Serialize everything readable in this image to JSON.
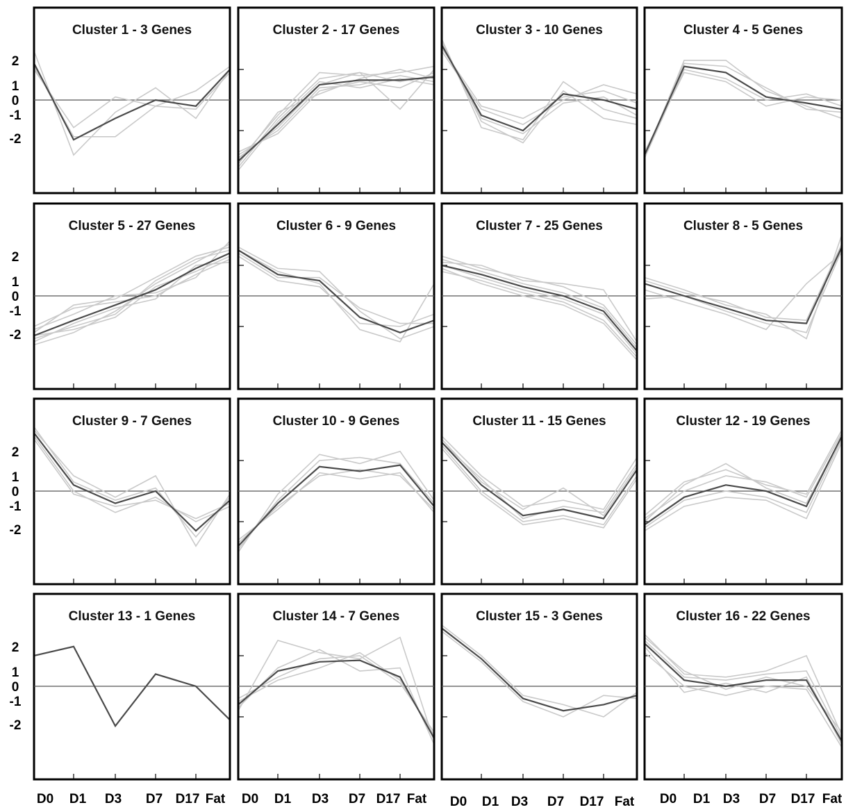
{
  "chart_data": {
    "type": "line",
    "layout": "4x4 grid of small multiples",
    "x_categories": [
      "D0",
      "D1",
      "D3",
      "D7",
      "D17",
      "Fat"
    ],
    "y_tick_labels": [
      "2",
      "1",
      "0",
      "-1",
      "-2"
    ],
    "ylim": [
      -3,
      3
    ],
    "grid": false,
    "zero_line": true,
    "colors": {
      "mean_line": "#4a4a4a",
      "gene_lines": "#c9c9c9",
      "zero_line": "#555555",
      "frame": "#000000"
    },
    "panels": [
      {
        "title": "Cluster 1 - 3 Genes",
        "mean": [
          1.2,
          -1.3,
          -0.6,
          0.0,
          -0.2,
          1.0
        ],
        "genes": [
          [
            1.6,
            -1.8,
            -0.4,
            0.4,
            -0.6,
            1.0
          ],
          [
            1.0,
            -0.9,
            0.1,
            -0.2,
            0.3,
            1.1
          ],
          [
            1.1,
            -1.2,
            -1.2,
            -0.2,
            -0.3,
            0.9
          ]
        ]
      },
      {
        "title": "Cluster 2 - 17 Genes",
        "mean": [
          -2.0,
          -0.8,
          0.5,
          0.65,
          0.65,
          0.75
        ],
        "genes": [
          [
            -2.2,
            -0.6,
            0.7,
            0.9,
            0.6,
            0.8
          ],
          [
            -1.8,
            -1.0,
            0.4,
            0.5,
            0.8,
            0.6
          ],
          [
            -2.0,
            -0.5,
            0.9,
            0.8,
            0.9,
            1.1
          ],
          [
            -1.7,
            -1.1,
            0.3,
            0.6,
            0.4,
            0.9
          ],
          [
            -2.3,
            -0.7,
            0.6,
            0.4,
            0.7,
            0.5
          ],
          [
            -1.9,
            -0.9,
            0.5,
            0.9,
            -0.3,
            1.0
          ],
          [
            -2.1,
            -0.4,
            0.2,
            0.7,
            1.0,
            0.7
          ]
        ]
      },
      {
        "title": "Cluster 3 - 10 Genes",
        "mean": [
          1.8,
          -0.5,
          -1.0,
          0.2,
          0.0,
          -0.3
        ],
        "genes": [
          [
            2.0,
            -0.9,
            -1.3,
            0.6,
            -0.3,
            -0.6
          ],
          [
            1.6,
            -0.3,
            -0.8,
            0.0,
            0.5,
            0.2
          ],
          [
            1.9,
            -0.7,
            -1.4,
            0.3,
            -0.6,
            -0.8
          ],
          [
            1.7,
            -0.2,
            -0.6,
            0.1,
            0.3,
            -0.1
          ],
          [
            1.8,
            -0.6,
            -1.1,
            -0.1,
            0.1,
            -0.5
          ]
        ]
      },
      {
        "title": "Cluster 4 - 5 Genes",
        "mean": [
          -1.8,
          1.1,
          0.9,
          0.1,
          -0.1,
          -0.3
        ],
        "genes": [
          [
            -1.9,
            1.3,
            1.3,
            0.3,
            -0.2,
            -0.6
          ],
          [
            -1.7,
            0.9,
            0.6,
            -0.2,
            0.1,
            0.0
          ],
          [
            -1.8,
            1.2,
            1.1,
            0.4,
            -0.3,
            -0.4
          ],
          [
            -1.9,
            1.0,
            0.7,
            0.0,
            0.2,
            -0.2
          ]
        ]
      },
      {
        "title": "Cluster 5 - 27 Genes",
        "mean": [
          -1.3,
          -0.8,
          -0.3,
          0.2,
          0.9,
          1.4
        ],
        "genes": [
          [
            -1.6,
            -1.2,
            -0.5,
            0.4,
            1.1,
            1.7
          ],
          [
            -1.0,
            -0.4,
            -0.2,
            0.0,
            0.7,
            1.2
          ],
          [
            -1.4,
            -1.0,
            -0.6,
            0.5,
            1.2,
            1.5
          ],
          [
            -1.1,
            -0.6,
            0.0,
            0.1,
            0.6,
            1.8
          ],
          [
            -1.5,
            -0.9,
            -0.4,
            -0.1,
            1.0,
            1.1
          ],
          [
            -1.2,
            -0.3,
            -0.1,
            0.6,
            1.3,
            1.6
          ],
          [
            -1.3,
            -1.1,
            -0.7,
            0.3,
            0.8,
            1.3
          ]
        ]
      },
      {
        "title": "Cluster 6 - 9 Genes",
        "mean": [
          1.5,
          0.7,
          0.5,
          -0.7,
          -1.2,
          -0.8
        ],
        "genes": [
          [
            1.6,
            0.9,
            0.8,
            -0.5,
            -1.4,
            -1.0
          ],
          [
            1.3,
            0.5,
            0.3,
            -0.9,
            -1.0,
            -0.6
          ],
          [
            1.5,
            0.8,
            0.4,
            -1.1,
            -1.5,
            0.4
          ],
          [
            1.4,
            0.6,
            0.6,
            -0.4,
            -0.9,
            -0.9
          ]
        ]
      },
      {
        "title": "Cluster 7 - 25 Genes",
        "mean": [
          1.0,
          0.7,
          0.3,
          0.0,
          -0.5,
          -1.8
        ],
        "genes": [
          [
            1.3,
            0.9,
            0.6,
            0.3,
            -0.3,
            -1.6
          ],
          [
            0.8,
            0.5,
            0.1,
            -0.2,
            -0.8,
            -2.0
          ],
          [
            1.1,
            1.0,
            0.5,
            0.4,
            0.2,
            -1.5
          ],
          [
            0.9,
            0.4,
            0.0,
            -0.3,
            -0.9,
            -2.1
          ],
          [
            1.2,
            0.8,
            0.4,
            0.1,
            -0.4,
            -1.7
          ],
          [
            1.0,
            0.6,
            0.2,
            -0.1,
            -0.6,
            -1.9
          ]
        ]
      },
      {
        "title": "Cluster 8 - 5 Genes",
        "mean": [
          0.4,
          0.0,
          -0.4,
          -0.8,
          -0.9,
          1.6
        ],
        "genes": [
          [
            0.6,
            0.2,
            -0.3,
            -0.6,
            -1.4,
            2.0
          ],
          [
            0.2,
            -0.2,
            -0.6,
            -1.1,
            0.4,
            1.4
          ],
          [
            0.5,
            0.1,
            -0.2,
            -0.7,
            -0.8,
            1.7
          ],
          [
            -0.1,
            0.0,
            -0.5,
            -0.9,
            -1.2,
            1.5
          ]
        ]
      },
      {
        "title": "Cluster 9 - 7 Genes",
        "mean": [
          1.9,
          0.2,
          -0.4,
          0.0,
          -1.3,
          -0.3
        ],
        "genes": [
          [
            2.0,
            0.5,
            -0.2,
            0.5,
            -1.8,
            -0.1
          ],
          [
            1.8,
            0.0,
            -0.7,
            -0.2,
            -1.0,
            -0.5
          ],
          [
            2.1,
            0.3,
            -0.3,
            0.1,
            -1.5,
            -0.2
          ],
          [
            1.7,
            -0.1,
            -0.5,
            -0.3,
            -0.9,
            -0.4
          ]
        ]
      },
      {
        "title": "Cluster 10 - 9 Genes",
        "mean": [
          -1.8,
          -0.4,
          0.8,
          0.65,
          0.85,
          -0.5
        ],
        "genes": [
          [
            -2.0,
            -0.1,
            1.2,
            0.9,
            1.3,
            -0.3
          ],
          [
            -1.6,
            -0.6,
            0.6,
            0.4,
            0.6,
            -0.7
          ],
          [
            -1.9,
            -0.3,
            1.0,
            1.1,
            0.9,
            -0.4
          ],
          [
            -1.7,
            -0.5,
            0.5,
            0.7,
            0.5,
            -0.6
          ]
        ]
      },
      {
        "title": "Cluster 11 - 15 Genes",
        "mean": [
          1.6,
          0.2,
          -0.8,
          -0.6,
          -0.9,
          0.7
        ],
        "genes": [
          [
            1.8,
            0.5,
            -0.5,
            -0.3,
            -0.6,
            1.1
          ],
          [
            1.4,
            -0.1,
            -1.1,
            -0.9,
            -1.2,
            0.4
          ],
          [
            1.7,
            0.3,
            -0.6,
            0.1,
            -0.8,
            0.8
          ],
          [
            1.5,
            0.0,
            -1.0,
            -0.8,
            -1.1,
            0.5
          ],
          [
            1.6,
            0.4,
            -0.9,
            -0.5,
            -0.7,
            0.9
          ]
        ]
      },
      {
        "title": "Cluster 12 - 19 Genes",
        "mean": [
          -1.1,
          -0.2,
          0.2,
          0.0,
          -0.5,
          1.8
        ],
        "genes": [
          [
            -0.8,
            0.3,
            0.7,
            0.2,
            -0.1,
            2.0
          ],
          [
            -1.3,
            -0.5,
            -0.2,
            -0.3,
            -0.9,
            1.6
          ],
          [
            -0.9,
            0.0,
            0.5,
            0.3,
            -0.2,
            1.9
          ],
          [
            -1.2,
            -0.3,
            0.0,
            -0.2,
            -0.7,
            1.7
          ],
          [
            -1.0,
            0.2,
            0.9,
            0.1,
            -0.4,
            1.8
          ]
        ]
      },
      {
        "title": "Cluster 13 - 1 Genes",
        "mean": [
          1.0,
          1.3,
          -1.3,
          0.4,
          0.0,
          -1.1
        ],
        "genes": []
      },
      {
        "title": "Cluster 14 - 7 Genes",
        "mean": [
          -0.6,
          0.5,
          0.8,
          0.85,
          0.3,
          -1.7
        ],
        "genes": [
          [
            -0.8,
            1.5,
            1.1,
            0.9,
            1.6,
            -1.8
          ],
          [
            -0.4,
            0.3,
            0.9,
            1.0,
            0.1,
            -1.5
          ],
          [
            -0.7,
            0.6,
            1.2,
            0.5,
            0.6,
            -1.9
          ],
          [
            -0.5,
            0.2,
            0.6,
            1.1,
            0.2,
            -1.6
          ]
        ]
      },
      {
        "title": "Cluster 15 - 3 Genes",
        "mean": [
          1.9,
          0.9,
          -0.4,
          -0.8,
          -0.6,
          -0.3
        ],
        "genes": [
          [
            2.0,
            1.0,
            -0.3,
            -0.6,
            -1.0,
            -0.2
          ],
          [
            1.8,
            0.8,
            -0.5,
            -1.0,
            -0.3,
            -0.4
          ]
        ]
      },
      {
        "title": "Cluster 16 - 22 Genes",
        "mean": [
          1.4,
          0.2,
          0.0,
          0.2,
          0.2,
          -1.8
        ],
        "genes": [
          [
            1.7,
            0.4,
            0.3,
            0.5,
            1.0,
            -1.6
          ],
          [
            1.1,
            0.0,
            -0.3,
            0.0,
            -0.1,
            -2.0
          ],
          [
            1.5,
            0.3,
            0.2,
            0.4,
            0.5,
            -1.7
          ],
          [
            1.3,
            -0.2,
            0.1,
            -0.2,
            0.3,
            -1.9
          ],
          [
            1.6,
            0.5,
            -0.1,
            0.3,
            0.0,
            -1.5
          ]
        ]
      }
    ]
  }
}
